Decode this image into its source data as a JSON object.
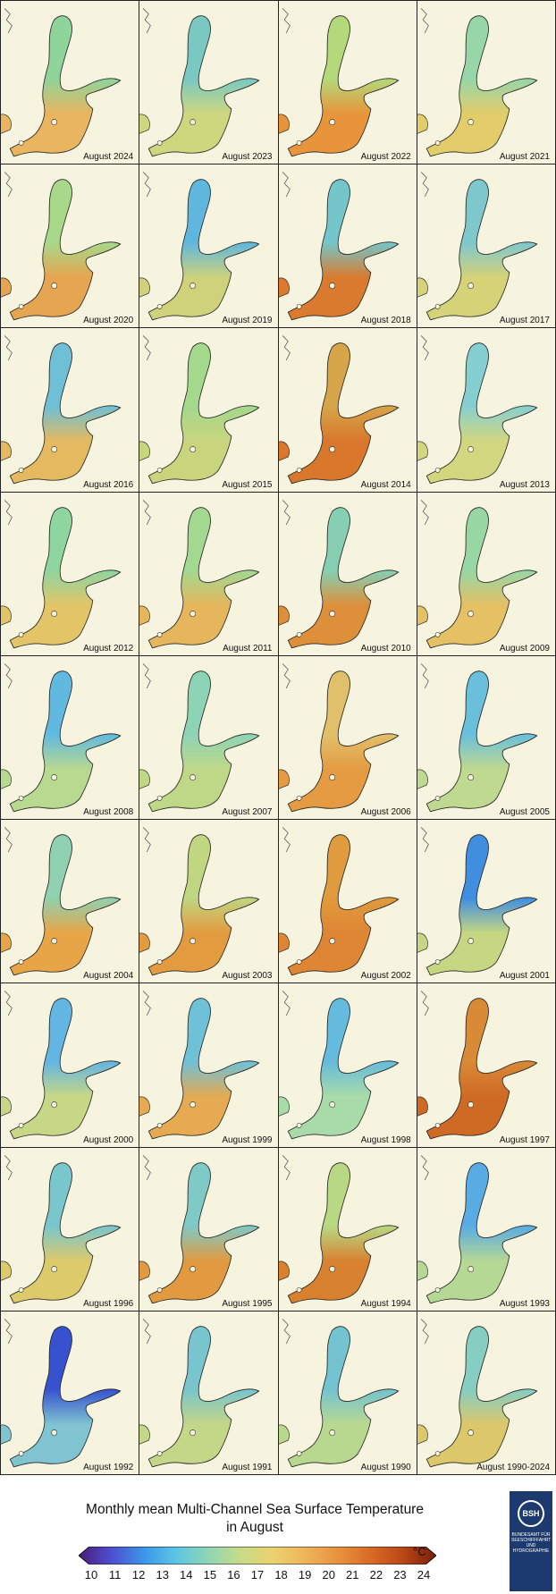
{
  "panels": [
    {
      "label": "August 2024",
      "color": "#e9b560",
      "north": "#8fd49a"
    },
    {
      "label": "August 2023",
      "color": "#cfd77e",
      "north": "#79c8c2"
    },
    {
      "label": "August 2022",
      "color": "#e8943a",
      "north": "#b4d97a"
    },
    {
      "label": "August 2021",
      "color": "#e3cc6a",
      "north": "#96d6a8"
    },
    {
      "label": "August 2020",
      "color": "#e6a550",
      "north": "#a8d88a"
    },
    {
      "label": "August 2019",
      "color": "#cfd27a",
      "north": "#5fb7dd"
    },
    {
      "label": "August 2018",
      "color": "#da7a2e",
      "north": "#74c6cb"
    },
    {
      "label": "August 2017",
      "color": "#d6d277",
      "north": "#7ec7cd"
    },
    {
      "label": "August 2016",
      "color": "#e5b95f",
      "north": "#6fc0d6"
    },
    {
      "label": "August 2015",
      "color": "#c9d57d",
      "north": "#a4d88d"
    },
    {
      "label": "August 2014",
      "color": "#d9772c",
      "north": "#d6a549"
    },
    {
      "label": "August 2013",
      "color": "#d2d77f",
      "north": "#86cfd0"
    },
    {
      "label": "August 2012",
      "color": "#e3c567",
      "north": "#8fd5a0"
    },
    {
      "label": "August 2011",
      "color": "#e5b65b",
      "north": "#a2d890"
    },
    {
      "label": "August 2010",
      "color": "#dd8f3a",
      "north": "#86cfb3"
    },
    {
      "label": "August 2009",
      "color": "#e5c064",
      "north": "#98d6a4"
    },
    {
      "label": "August 2008",
      "color": "#b8d990",
      "north": "#62b9df"
    },
    {
      "label": "August 2007",
      "color": "#bfd887",
      "north": "#8dd3b6"
    },
    {
      "label": "August 2006",
      "color": "#e49b42",
      "north": "#e0c06a"
    },
    {
      "label": "August 2005",
      "color": "#bfd990",
      "north": "#69bfdc"
    },
    {
      "label": "August 2004",
      "color": "#e8a548",
      "north": "#8fd1b0"
    },
    {
      "label": "August 2003",
      "color": "#e39b40",
      "north": "#c0d681"
    },
    {
      "label": "August 2002",
      "color": "#df8634",
      "north": "#df9b3d"
    },
    {
      "label": "August 2001",
      "color": "#c6d682",
      "north": "#3f8edf"
    },
    {
      "label": "August 2000",
      "color": "#c7d785",
      "north": "#63b5e2"
    },
    {
      "label": "August 1999",
      "color": "#e5aa52",
      "north": "#6ec1d7"
    },
    {
      "label": "August 1998",
      "color": "#a9dba8",
      "north": "#65bbdd"
    },
    {
      "label": "August 1997",
      "color": "#cf6a25",
      "north": "#d88a36"
    },
    {
      "label": "August 1996",
      "color": "#dcca6b",
      "north": "#79c6cc"
    },
    {
      "label": "August 1995",
      "color": "#e29a40",
      "north": "#7fc9c6"
    },
    {
      "label": "August 1994",
      "color": "#d8822f",
      "north": "#b8d883"
    },
    {
      "label": "August 1993",
      "color": "#b6d895",
      "north": "#59abe4"
    },
    {
      "label": "August 1992",
      "color": "#7fc4d0",
      "north": "#3852cf"
    },
    {
      "label": "August 1991",
      "color": "#c4d687",
      "north": "#78c5cd"
    },
    {
      "label": "August 1990",
      "color": "#b9d88f",
      "north": "#74c3d1"
    },
    {
      "label": "August 1990-2024",
      "color": "#dcc86a",
      "north": "#86cdc2"
    }
  ],
  "title": {
    "line1": "Monthly mean Multi-Channel Sea Surface Temperature",
    "line2": "in August"
  },
  "colorbar": {
    "ticks": [
      "10",
      "11",
      "12",
      "13",
      "14",
      "15",
      "16",
      "17",
      "18",
      "19",
      "20",
      "21",
      "22",
      "23",
      "24"
    ],
    "unit": "°C",
    "stops": [
      "#4a1d78",
      "#4d4ed0",
      "#3d95e8",
      "#5cc6e3",
      "#8fd6b5",
      "#c7dc88",
      "#ecd16d",
      "#eeb45a",
      "#e9913c",
      "#d86a26",
      "#b94616",
      "#7a1d0c"
    ]
  },
  "logo": {
    "abbr": "BSH",
    "org": "BUNDESAMT FÜR SEESCHIFFFAHRT UND HYDROGRAPHIE"
  }
}
